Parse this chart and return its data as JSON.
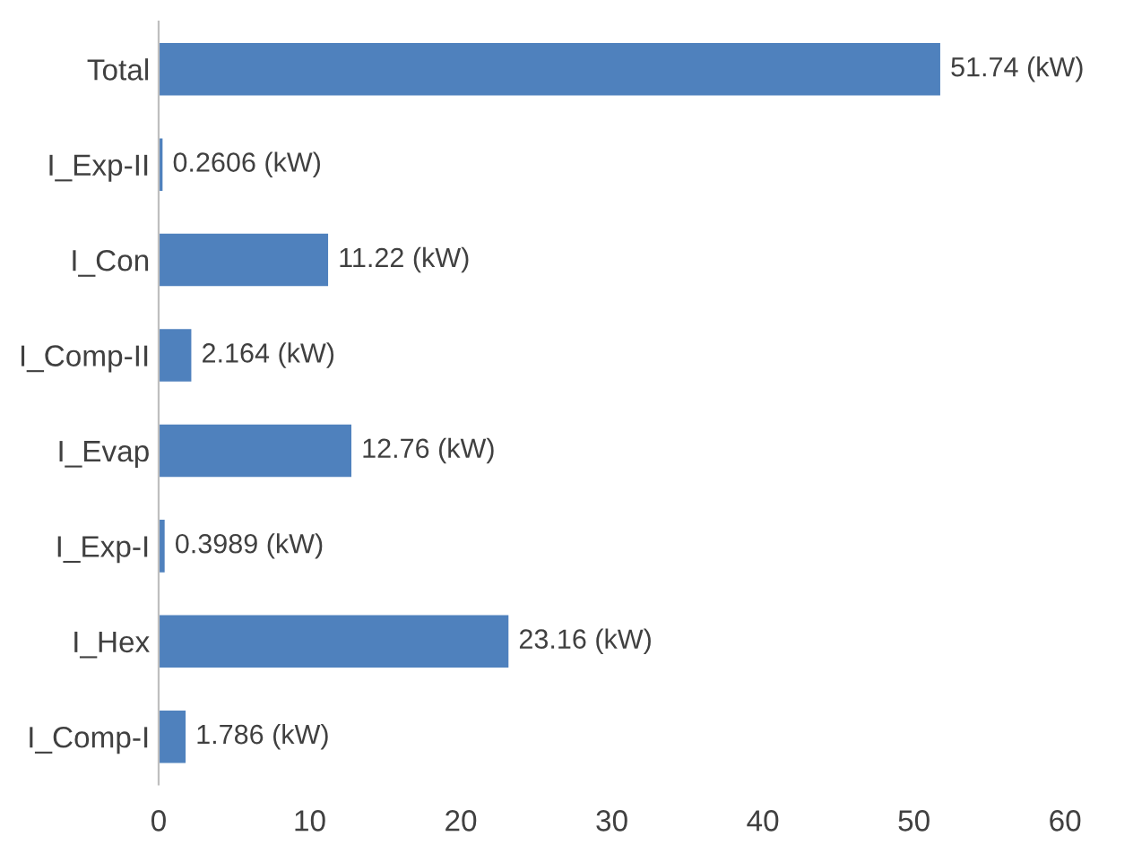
{
  "chart_data": {
    "type": "bar",
    "orientation": "horizontal",
    "categories": [
      "Total",
      "I_Exp-II",
      "I_Con",
      "I_Comp-II",
      "I_Evap",
      "I_Exp-I",
      "I_Hex",
      "I_Comp-I"
    ],
    "values": [
      51.74,
      0.2606,
      11.22,
      2.164,
      12.76,
      0.3989,
      23.16,
      1.786
    ],
    "value_labels": [
      "51.74 (kW)",
      "0.2606 (kW)",
      "11.22 (kW)",
      "2.164 (kW)",
      "12.76 (kW)",
      "0.3989 (kW)",
      "23.16 (kW)",
      "1.786 (kW)"
    ],
    "color": "#4f81bd",
    "xlim": [
      0,
      60
    ],
    "xticks": [
      0,
      10,
      20,
      30,
      40,
      50,
      60
    ],
    "grid": false,
    "legend": false
  }
}
